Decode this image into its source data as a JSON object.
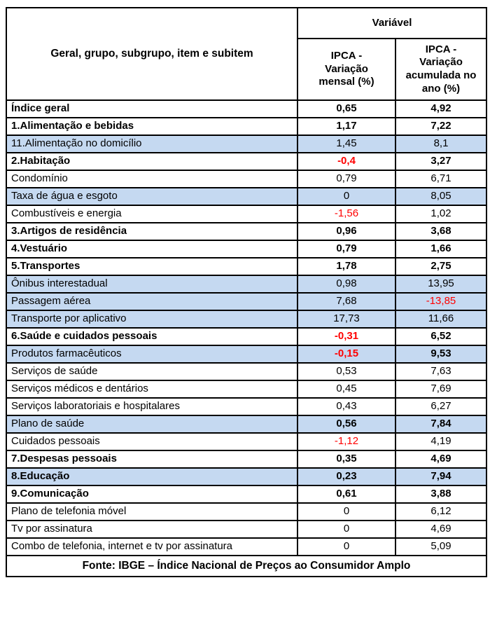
{
  "chart_data": {
    "type": "table",
    "title": "",
    "group_header": "Variável",
    "columns": [
      "Geral, grupo, subgrupo, item e subitem",
      "IPCA - Variação mensal (%)",
      "IPCA - Variação acumulada no ano (%)"
    ],
    "column_display": {
      "items": "Geral, grupo, subgrupo, item e subitem",
      "monthly": "IPCA -\nVariação\nmensal (%)",
      "ytd": "IPCA -\nVariação\nacumulada no\nano (%)"
    },
    "rows": [
      {
        "label": "Índice geral",
        "monthly": "0,65",
        "ytd": "4,92",
        "bold": true,
        "blue": false,
        "values_bold": false,
        "m_red": false,
        "y_red": false
      },
      {
        "label": "1.Alimentação e bebidas",
        "monthly": "1,17",
        "ytd": "7,22",
        "bold": true,
        "blue": false,
        "values_bold": false,
        "m_red": false,
        "y_red": false
      },
      {
        "label": "11.Alimentação no domicílio",
        "monthly": "1,45",
        "ytd": "8,1",
        "bold": false,
        "blue": true,
        "values_bold": false,
        "m_red": false,
        "y_red": false
      },
      {
        "label": "2.Habitação",
        "monthly": "-0,4",
        "ytd": "3,27",
        "bold": true,
        "blue": false,
        "values_bold": false,
        "m_red": true,
        "y_red": false
      },
      {
        "label": "Condomínio",
        "monthly": "0,79",
        "ytd": "6,71",
        "bold": false,
        "blue": false,
        "values_bold": false,
        "m_red": false,
        "y_red": false
      },
      {
        "label": "Taxa de água e esgoto",
        "monthly": "0",
        "ytd": "8,05",
        "bold": false,
        "blue": true,
        "values_bold": false,
        "m_red": false,
        "y_red": false
      },
      {
        "label": "Combustíveis e energia",
        "monthly": "-1,56",
        "ytd": "1,02",
        "bold": false,
        "blue": false,
        "values_bold": false,
        "m_red": true,
        "y_red": false
      },
      {
        "label": "3.Artigos de residência",
        "monthly": "0,96",
        "ytd": "3,68",
        "bold": true,
        "blue": false,
        "values_bold": false,
        "m_red": false,
        "y_red": false
      },
      {
        "label": "4.Vestuário",
        "monthly": "0,79",
        "ytd": "1,66",
        "bold": true,
        "blue": false,
        "values_bold": false,
        "m_red": false,
        "y_red": false
      },
      {
        "label": "5.Transportes",
        "monthly": "1,78",
        "ytd": "2,75",
        "bold": true,
        "blue": false,
        "values_bold": false,
        "m_red": false,
        "y_red": false
      },
      {
        "label": "Ônibus interestadual",
        "monthly": "0,98",
        "ytd": "13,95",
        "bold": false,
        "blue": true,
        "values_bold": false,
        "m_red": false,
        "y_red": false
      },
      {
        "label": "Passagem aérea",
        "monthly": "7,68",
        "ytd": "-13,85",
        "bold": false,
        "blue": true,
        "values_bold": false,
        "m_red": false,
        "y_red": true
      },
      {
        "label": "Transporte por aplicativo",
        "monthly": "17,73",
        "ytd": "11,66",
        "bold": false,
        "blue": true,
        "values_bold": false,
        "m_red": false,
        "y_red": false
      },
      {
        "label": "6.Saúde e cuidados pessoais",
        "monthly": "-0,31",
        "ytd": "6,52",
        "bold": true,
        "blue": false,
        "values_bold": false,
        "m_red": true,
        "y_red": false
      },
      {
        "label": "Produtos farmacêuticos",
        "monthly": "-0,15",
        "ytd": "9,53",
        "bold": false,
        "blue": true,
        "values_bold": true,
        "m_red": true,
        "y_red": false
      },
      {
        "label": "Serviços de saúde",
        "monthly": "0,53",
        "ytd": "7,63",
        "bold": false,
        "blue": false,
        "values_bold": false,
        "m_red": false,
        "y_red": false
      },
      {
        "label": "Serviços médicos e dentários",
        "monthly": "0,45",
        "ytd": "7,69",
        "bold": false,
        "blue": false,
        "values_bold": false,
        "m_red": false,
        "y_red": false
      },
      {
        "label": "Serviços laboratoriais e hospitalares",
        "monthly": "0,43",
        "ytd": "6,27",
        "bold": false,
        "blue": false,
        "values_bold": false,
        "m_red": false,
        "y_red": false
      },
      {
        "label": "Plano de saúde",
        "monthly": "0,56",
        "ytd": "7,84",
        "bold": false,
        "blue": true,
        "values_bold": true,
        "m_red": false,
        "y_red": false
      },
      {
        "label": "Cuidados pessoais",
        "monthly": "-1,12",
        "ytd": "4,19",
        "bold": false,
        "blue": false,
        "values_bold": false,
        "m_red": true,
        "y_red": false
      },
      {
        "label": "7.Despesas pessoais",
        "monthly": "0,35",
        "ytd": "4,69",
        "bold": true,
        "blue": false,
        "values_bold": false,
        "m_red": false,
        "y_red": false
      },
      {
        "label": "8.Educação",
        "monthly": "0,23",
        "ytd": "7,94",
        "bold": true,
        "blue": true,
        "values_bold": false,
        "m_red": false,
        "y_red": false
      },
      {
        "label": "9.Comunicação",
        "monthly": "0,61",
        "ytd": "3,88",
        "bold": true,
        "blue": false,
        "values_bold": false,
        "m_red": false,
        "y_red": false
      },
      {
        "label": "Plano de telefonia móvel",
        "monthly": "0",
        "ytd": "6,12",
        "bold": false,
        "blue": false,
        "values_bold": false,
        "m_red": false,
        "y_red": false
      },
      {
        "label": "Tv por assinatura",
        "monthly": "0",
        "ytd": "4,69",
        "bold": false,
        "blue": false,
        "values_bold": false,
        "m_red": false,
        "y_red": false
      },
      {
        "label": "Combo de telefonia, internet e tv por assinatura",
        "monthly": "0",
        "ytd": "5,09",
        "bold": false,
        "blue": false,
        "values_bold": false,
        "m_red": false,
        "y_red": false
      }
    ],
    "footer": "Fonte: IBGE – Índice Nacional de Preços ao Consumidor Amplo"
  },
  "colors": {
    "row_highlight": "#C5D9F1",
    "negative": "#FF0000",
    "border": "#000000"
  }
}
